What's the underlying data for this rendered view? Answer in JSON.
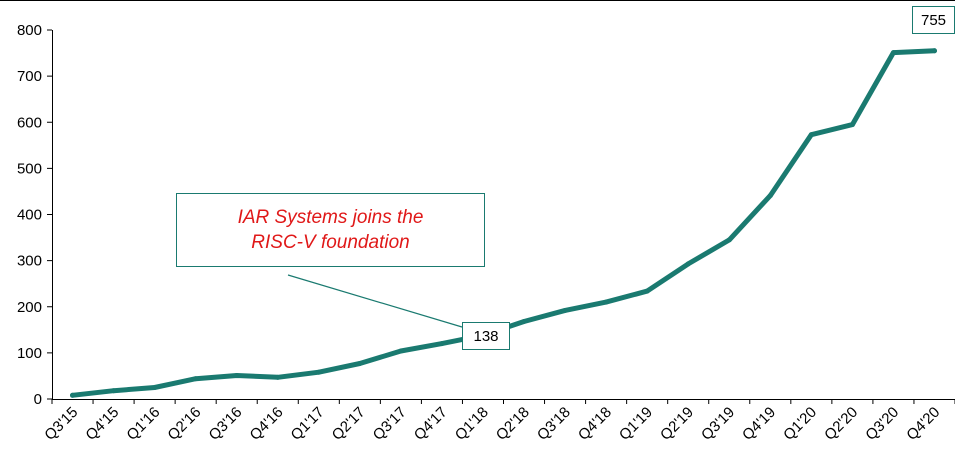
{
  "chart_data": {
    "type": "line",
    "categories": [
      "Q3'15",
      "Q4'15",
      "Q1'16",
      "Q2'16",
      "Q3'16",
      "Q4'16",
      "Q1'17",
      "Q2'17",
      "Q3'17",
      "Q4'17",
      "Q1'18",
      "Q2'18",
      "Q3'18",
      "Q4'18",
      "Q1'19",
      "Q2'19",
      "Q3'19",
      "Q4'19",
      "Q1'20",
      "Q2'20",
      "Q3'20",
      "Q4'20"
    ],
    "series": [
      {
        "values": [
          8,
          18,
          25,
          44,
          51,
          47,
          58,
          77,
          104,
          120,
          138,
          168,
          192,
          210,
          234,
          293,
          345,
          441,
          573,
          595,
          751,
          755
        ],
        "color": "#1a7a70"
      }
    ],
    "ylim": [
      0,
      800
    ],
    "yticks": [
      0,
      100,
      200,
      300,
      400,
      500,
      600,
      700,
      800
    ],
    "title": "",
    "xlabel": "",
    "ylabel": "",
    "grid": false,
    "legend": "none",
    "data_labels": [
      {
        "category": "Q1'18",
        "text": "138"
      },
      {
        "category": "Q4'20",
        "text": "755"
      }
    ],
    "annotation": {
      "lines": [
        "IAR Systems joins the",
        "RISC-V foundation"
      ],
      "text_color": "#e01818",
      "border_color": "#1a7a70",
      "points_to": "Q1'18"
    }
  }
}
